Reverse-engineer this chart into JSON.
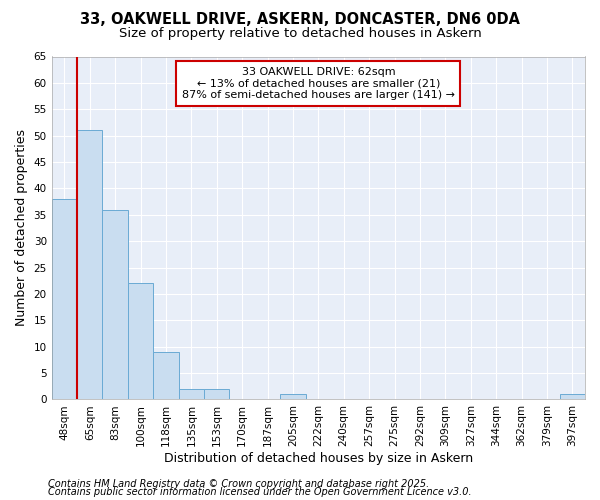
{
  "title_line1": "33, OAKWELL DRIVE, ASKERN, DONCASTER, DN6 0DA",
  "title_line2": "Size of property relative to detached houses in Askern",
  "xlabel": "Distribution of detached houses by size in Askern",
  "ylabel": "Number of detached properties",
  "categories": [
    "48sqm",
    "65sqm",
    "83sqm",
    "100sqm",
    "118sqm",
    "135sqm",
    "153sqm",
    "170sqm",
    "187sqm",
    "205sqm",
    "222sqm",
    "240sqm",
    "257sqm",
    "275sqm",
    "292sqm",
    "309sqm",
    "327sqm",
    "344sqm",
    "362sqm",
    "379sqm",
    "397sqm"
  ],
  "values": [
    38,
    51,
    36,
    22,
    9,
    2,
    2,
    0,
    0,
    1,
    0,
    0,
    0,
    0,
    0,
    0,
    0,
    0,
    0,
    0,
    1
  ],
  "bar_color": "#c9ddf0",
  "bar_edge_color": "#6aaad4",
  "vline_color": "#cc0000",
  "annotation_text": "33 OAKWELL DRIVE: 62sqm\n← 13% of detached houses are smaller (21)\n87% of semi-detached houses are larger (141) →",
  "annotation_box_color": "white",
  "annotation_box_edge": "#cc0000",
  "ylim": [
    0,
    65
  ],
  "yticks": [
    0,
    5,
    10,
    15,
    20,
    25,
    30,
    35,
    40,
    45,
    50,
    55,
    60,
    65
  ],
  "plot_bg_color": "#e8eef8",
  "fig_bg_color": "#ffffff",
  "grid_color": "#ffffff",
  "footer_line1": "Contains HM Land Registry data © Crown copyright and database right 2025.",
  "footer_line2": "Contains public sector information licensed under the Open Government Licence v3.0.",
  "title_fontsize": 10.5,
  "subtitle_fontsize": 9.5,
  "axis_label_fontsize": 9,
  "tick_fontsize": 7.5,
  "annotation_fontsize": 8,
  "footer_fontsize": 7
}
